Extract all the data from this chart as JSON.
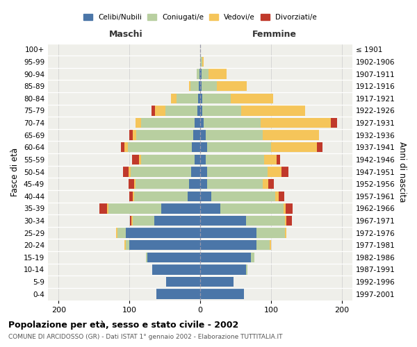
{
  "age_groups": [
    "0-4",
    "5-9",
    "10-14",
    "15-19",
    "20-24",
    "25-29",
    "30-34",
    "35-39",
    "40-44",
    "45-49",
    "50-54",
    "55-59",
    "60-64",
    "65-69",
    "70-74",
    "75-79",
    "80-84",
    "85-89",
    "90-94",
    "95-99",
    "100+"
  ],
  "birth_years": [
    "1997-2001",
    "1992-1996",
    "1987-1991",
    "1982-1986",
    "1977-1981",
    "1972-1976",
    "1967-1971",
    "1962-1966",
    "1957-1961",
    "1952-1956",
    "1947-1951",
    "1942-1946",
    "1937-1941",
    "1932-1936",
    "1927-1931",
    "1922-1926",
    "1917-1921",
    "1912-1916",
    "1907-1911",
    "1902-1906",
    "≤ 1901"
  ],
  "male": {
    "celibi": [
      62,
      48,
      68,
      75,
      100,
      105,
      65,
      55,
      18,
      16,
      13,
      8,
      12,
      10,
      8,
      4,
      3,
      2,
      1,
      0,
      0
    ],
    "coniugati": [
      0,
      0,
      0,
      2,
      5,
      12,
      30,
      75,
      75,
      75,
      85,
      75,
      90,
      80,
      75,
      45,
      30,
      12,
      4,
      0,
      0
    ],
    "vedovi": [
      0,
      0,
      0,
      0,
      2,
      2,
      2,
      2,
      2,
      2,
      3,
      3,
      5,
      5,
      8,
      15,
      8,
      2,
      0,
      0,
      0
    ],
    "divorziati": [
      0,
      0,
      0,
      0,
      0,
      0,
      2,
      10,
      5,
      8,
      8,
      10,
      5,
      5,
      0,
      5,
      0,
      0,
      0,
      0,
      0
    ]
  },
  "female": {
    "nubili": [
      62,
      47,
      65,
      72,
      80,
      80,
      65,
      28,
      16,
      10,
      10,
      8,
      10,
      8,
      5,
      3,
      3,
      2,
      2,
      0,
      0
    ],
    "coniugate": [
      0,
      0,
      2,
      5,
      18,
      40,
      55,
      90,
      90,
      78,
      85,
      82,
      90,
      80,
      80,
      55,
      40,
      22,
      10,
      3,
      0
    ],
    "vedove": [
      0,
      0,
      0,
      0,
      2,
      2,
      2,
      3,
      5,
      8,
      20,
      18,
      65,
      80,
      100,
      90,
      60,
      42,
      25,
      2,
      0
    ],
    "divorziate": [
      0,
      0,
      0,
      0,
      0,
      0,
      8,
      10,
      8,
      8,
      10,
      5,
      8,
      0,
      8,
      0,
      0,
      0,
      0,
      0,
      0
    ]
  },
  "colors": {
    "celibi": "#4b76a8",
    "coniugati": "#b8cfa0",
    "vedovi": "#f5c55a",
    "divorziati": "#c0392b"
  },
  "xlim": [
    -215,
    215
  ],
  "xticks": [
    -200,
    -100,
    0,
    100,
    200
  ],
  "xticklabels": [
    "200",
    "100",
    "0",
    "100",
    "200"
  ],
  "title": "Popolazione per età, sesso e stato civile - 2002",
  "subtitle": "COMUNE DI ARCIDOSSO (GR) - Dati ISTAT 1° gennaio 2002 - Elaborazione TUTTITALIA.IT",
  "ylabel_left": "Fasce di età",
  "ylabel_right": "Anni di nascita",
  "label_maschi": "Maschi",
  "label_femmine": "Femmine",
  "legend_labels": [
    "Celibi/Nubili",
    "Coniugati/e",
    "Vedovi/e",
    "Divorziati/e"
  ],
  "bg_color": "#efefea",
  "bar_height": 0.82
}
